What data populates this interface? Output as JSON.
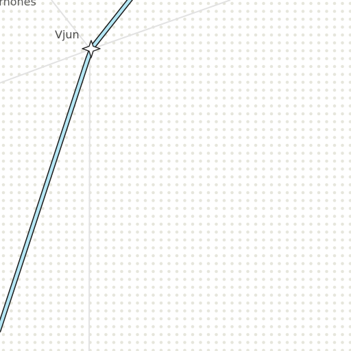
{
  "map": {
    "labels": {
      "partial_place": "rrnones",
      "place": "Vjun"
    },
    "colors": {
      "background": "#ffffff",
      "dot": "#e6e6dc",
      "minor_road": "#e2e2e2",
      "route_fill": "#b4e6f4",
      "route_outline": "#1a1a1a",
      "marker_fill": "#ffffff",
      "marker_stroke": "#222222"
    },
    "icons": {
      "marker": "star-marker-icon"
    }
  }
}
